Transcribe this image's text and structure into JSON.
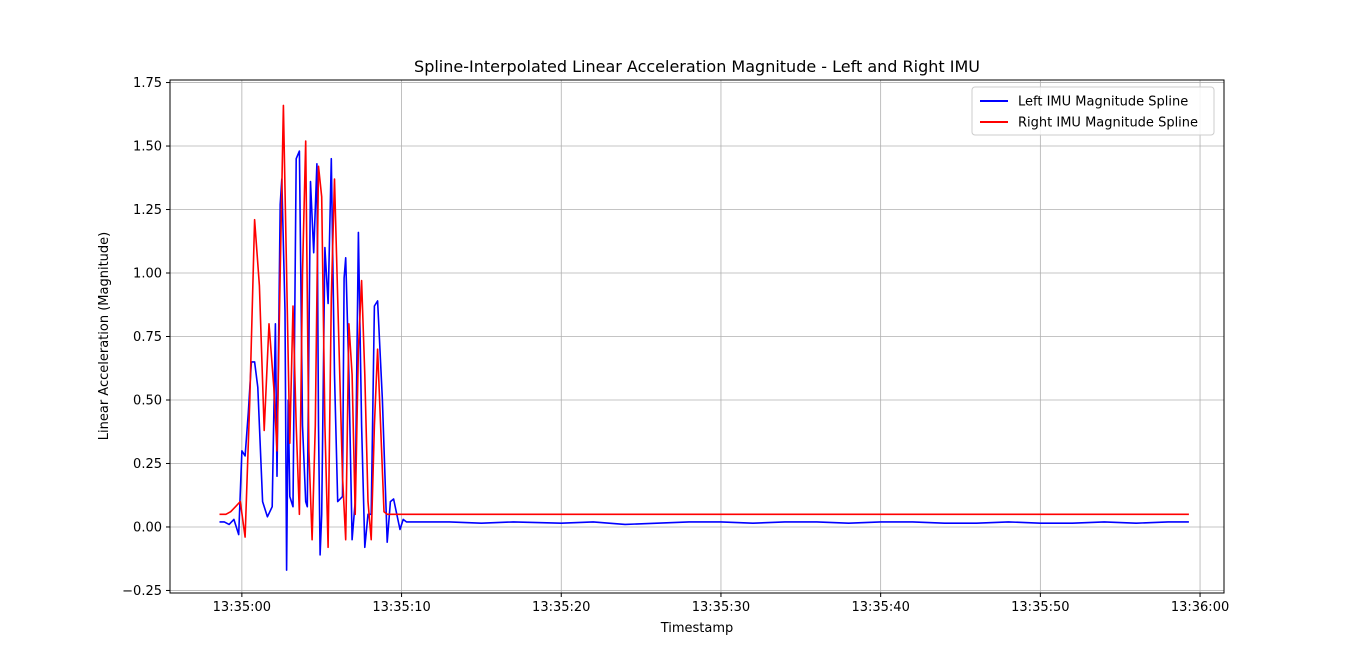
{
  "chart_data": {
    "type": "line",
    "title": "Spline-Interpolated Linear Acceleration Magnitude - Left and Right IMU",
    "xlabel": "Timestamp",
    "ylabel": "Linear Acceleration (Magnitude)",
    "xlim": [
      "13:34:55.5",
      "13:36:01.5"
    ],
    "ylim": [
      -0.26,
      1.76
    ],
    "x_ticks": [
      "13:35:00",
      "13:35:10",
      "13:35:20",
      "13:35:30",
      "13:35:40",
      "13:35:50",
      "13:36:00"
    ],
    "y_ticks": [
      "−0.25",
      "0.00",
      "0.25",
      "0.50",
      "0.75",
      "1.00",
      "1.25",
      "1.50",
      "1.75"
    ],
    "grid": true,
    "legend_position": "top-right",
    "series": [
      {
        "name": "Left IMU Magnitude Spline",
        "color": "#0000ff",
        "x": [
          "13:34:58.6",
          "13:34:58.9",
          "13:34:59.2",
          "13:34:59.5",
          "13:34:59.8",
          "13:35:00.0",
          "13:35:00.2",
          "13:35:00.4",
          "13:35:00.6",
          "13:35:00.8",
          "13:35:01.0",
          "13:35:01.3",
          "13:35:01.6",
          "13:35:01.9",
          "13:35:02.1",
          "13:35:02.2",
          "13:35:02.4",
          "13:35:02.5",
          "13:35:02.7",
          "13:35:02.8",
          "13:35:02.9",
          "13:35:03.0",
          "13:35:03.2",
          "13:35:03.4",
          "13:35:03.6",
          "13:35:03.8",
          "13:35:04.0",
          "13:35:04.1",
          "13:35:04.3",
          "13:35:04.5",
          "13:35:04.7",
          "13:35:04.8",
          "13:35:04.9",
          "13:35:05.0",
          "13:35:05.2",
          "13:35:05.4",
          "13:35:05.6",
          "13:35:05.8",
          "13:35:06.0",
          "13:35:06.3",
          "13:35:06.4",
          "13:35:06.5",
          "13:35:06.7",
          "13:35:06.9",
          "13:35:07.1",
          "13:35:07.3",
          "13:35:07.5",
          "13:35:07.7",
          "13:35:07.9",
          "13:35:08.1",
          "13:35:08.3",
          "13:35:08.5",
          "13:35:08.8",
          "13:35:09.1",
          "13:35:09.3",
          "13:35:09.5",
          "13:35:09.7",
          "13:35:09.9",
          "13:35:10.1",
          "13:35:10.3",
          "13:35:10.6",
          "13:35:10.9",
          "13:35:11.2",
          "13:35:11.5",
          "13:35:12.0",
          "13:35:13.0",
          "13:35:15.0",
          "13:35:17.0",
          "13:35:20.0",
          "13:35:22.0",
          "13:35:24.0",
          "13:35:26.0",
          "13:35:28.0",
          "13:35:30.0",
          "13:35:32.0",
          "13:35:34.0",
          "13:35:36.0",
          "13:35:38.0",
          "13:35:40.0",
          "13:35:42.0",
          "13:35:44.0",
          "13:35:46.0",
          "13:35:48.0",
          "13:35:50.0",
          "13:35:52.0",
          "13:35:54.0",
          "13:35:56.0",
          "13:35:58.0",
          "13:35:59.3"
        ],
        "y": [
          0.02,
          0.02,
          0.01,
          0.03,
          -0.03,
          0.3,
          0.28,
          0.45,
          0.65,
          0.65,
          0.55,
          0.1,
          0.04,
          0.08,
          0.8,
          0.2,
          1.27,
          1.37,
          0.85,
          -0.17,
          0.5,
          0.12,
          0.08,
          1.45,
          1.48,
          0.4,
          0.1,
          0.08,
          1.36,
          1.08,
          1.43,
          0.4,
          -0.11,
          0.05,
          1.1,
          0.88,
          1.45,
          0.6,
          0.1,
          0.12,
          0.98,
          1.06,
          0.6,
          -0.05,
          0.1,
          1.16,
          0.4,
          -0.08,
          0.05,
          0.05,
          0.87,
          0.89,
          0.5,
          -0.06,
          0.1,
          0.11,
          0.05,
          -0.01,
          0.03,
          0.02,
          0.02,
          0.02,
          0.02,
          0.02,
          0.02,
          0.02,
          0.015,
          0.02,
          0.015,
          0.02,
          0.01,
          0.015,
          0.02,
          0.02,
          0.015,
          0.02,
          0.02,
          0.015,
          0.02,
          0.02,
          0.015,
          0.015,
          0.02,
          0.015,
          0.015,
          0.02,
          0.015,
          0.02,
          0.02
        ]
      },
      {
        "name": "Right IMU Magnitude Spline",
        "color": "#ff0000",
        "x": [
          "13:34:58.6",
          "13:34:59.0",
          "13:34:59.3",
          "13:34:59.6",
          "13:34:59.9",
          "13:35:00.2",
          "13:35:00.5",
          "13:35:00.8",
          "13:35:01.1",
          "13:35:01.4",
          "13:35:01.7",
          "13:35:02.0",
          "13:35:02.2",
          "13:35:02.4",
          "13:35:02.6",
          "13:35:02.8",
          "13:35:03.0",
          "13:35:03.2",
          "13:35:03.4",
          "13:35:03.6",
          "13:35:03.8",
          "13:35:04.0",
          "13:35:04.2",
          "13:35:04.4",
          "13:35:04.6",
          "13:35:04.8",
          "13:35:05.0",
          "13:35:05.2",
          "13:35:05.4",
          "13:35:05.6",
          "13:35:05.8",
          "13:35:06.0",
          "13:35:06.3",
          "13:35:06.5",
          "13:35:06.7",
          "13:35:06.9",
          "13:35:07.1",
          "13:35:07.3",
          "13:35:07.5",
          "13:35:07.7",
          "13:35:07.9",
          "13:35:08.1",
          "13:35:08.3",
          "13:35:08.5",
          "13:35:08.7",
          "13:35:08.9",
          "13:35:09.1",
          "13:35:09.3",
          "13:35:09.5",
          "13:35:09.7",
          "13:35:10.0",
          "13:35:10.5",
          "13:35:11.0",
          "13:35:12.0",
          "13:35:14.0",
          "13:35:16.0",
          "13:35:18.0",
          "13:35:20.0",
          "13:35:22.0",
          "13:35:24.0",
          "13:35:26.0",
          "13:35:28.0",
          "13:35:30.0",
          "13:35:32.0",
          "13:35:34.0",
          "13:35:36.0",
          "13:35:38.0",
          "13:35:40.0",
          "13:35:42.0",
          "13:35:44.0",
          "13:35:46.0",
          "13:35:48.0",
          "13:35:50.0",
          "13:35:52.0",
          "13:35:54.0",
          "13:35:56.0",
          "13:35:58.0",
          "13:35:59.3"
        ],
        "y": [
          0.05,
          0.05,
          0.06,
          0.08,
          0.1,
          -0.04,
          0.5,
          1.21,
          0.95,
          0.38,
          0.8,
          0.55,
          0.3,
          1.0,
          1.66,
          1.0,
          0.33,
          0.87,
          0.4,
          0.05,
          1.0,
          1.52,
          0.3,
          -0.05,
          0.4,
          1.42,
          1.3,
          0.4,
          -0.08,
          0.9,
          1.37,
          0.9,
          0.2,
          -0.05,
          0.8,
          0.6,
          0.05,
          0.7,
          0.97,
          0.6,
          0.1,
          -0.05,
          0.4,
          0.7,
          0.38,
          0.06,
          0.05,
          0.05,
          0.05,
          0.05,
          0.05,
          0.05,
          0.05,
          0.05,
          0.05,
          0.05,
          0.05,
          0.05,
          0.05,
          0.05,
          0.05,
          0.05,
          0.05,
          0.05,
          0.05,
          0.05,
          0.05,
          0.05,
          0.05,
          0.05,
          0.05,
          0.05,
          0.05,
          0.05,
          0.05,
          0.05,
          0.05,
          0.05
        ]
      }
    ]
  }
}
